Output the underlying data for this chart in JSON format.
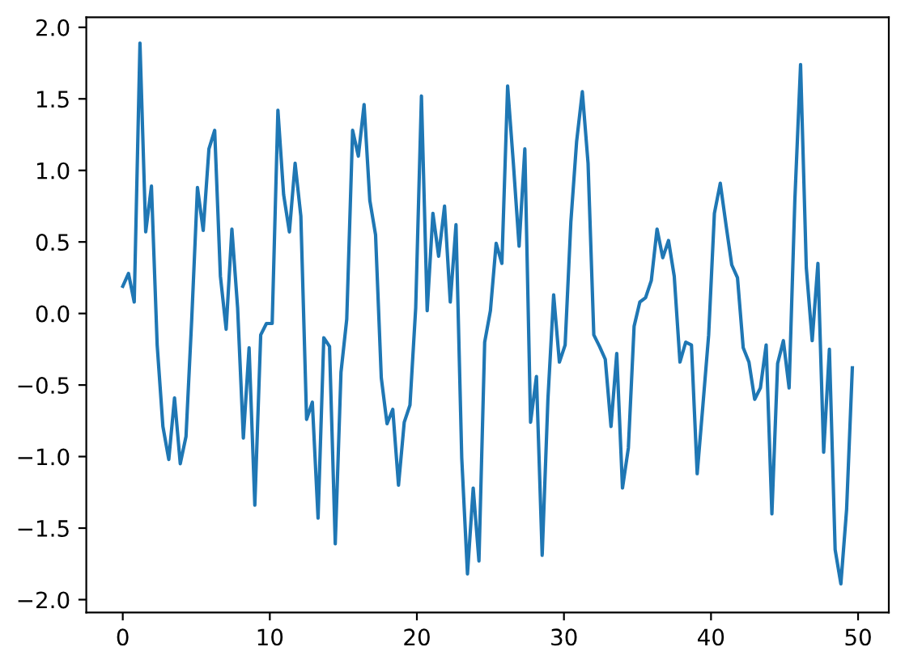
{
  "chart_data": {
    "type": "line",
    "x": [
      0,
      0.39,
      0.78,
      1.17,
      1.56,
      1.95,
      2.34,
      2.73,
      3.13,
      3.52,
      3.91,
      4.3,
      4.69,
      5.08,
      5.47,
      5.86,
      6.25,
      6.64,
      7.03,
      7.42,
      7.81,
      8.2,
      8.59,
      8.98,
      9.38,
      9.77,
      10.16,
      10.55,
      10.94,
      11.33,
      11.72,
      12.11,
      12.5,
      12.89,
      13.28,
      13.67,
      14.06,
      14.45,
      14.84,
      15.23,
      15.63,
      16.02,
      16.41,
      16.8,
      17.19,
      17.58,
      17.97,
      18.36,
      18.75,
      19.14,
      19.53,
      19.92,
      20.31,
      20.7,
      21.09,
      21.48,
      21.88,
      22.27,
      22.66,
      23.05,
      23.44,
      23.83,
      24.22,
      24.61,
      25,
      25.39,
      25.78,
      26.17,
      26.56,
      26.95,
      27.34,
      27.73,
      28.13,
      28.52,
      28.91,
      29.3,
      29.69,
      30.08,
      30.47,
      30.86,
      31.25,
      31.64,
      32.03,
      32.42,
      32.81,
      33.2,
      33.59,
      33.98,
      34.38,
      34.77,
      35.16,
      35.55,
      35.94,
      36.33,
      36.72,
      37.11,
      37.5,
      37.89,
      38.28,
      38.67,
      39.06,
      39.45,
      39.84,
      40.23,
      40.63,
      41.02,
      41.41,
      41.8,
      42.19,
      42.58,
      42.97,
      43.36,
      43.75,
      44.14,
      44.53,
      44.92,
      45.31,
      45.7,
      46.09,
      46.48,
      46.88,
      47.27,
      47.66,
      48.05,
      48.44,
      48.83,
      49.22,
      49.61
    ],
    "series": [
      {
        "color": "#1f77b4",
        "values": [
          0.19,
          0.28,
          0.08,
          1.89,
          0.57,
          0.89,
          -0.22,
          -0.79,
          -1.02,
          -0.59,
          -1.05,
          -0.86,
          -0.04,
          0.88,
          0.58,
          1.15,
          1.28,
          0.26,
          -0.11,
          0.59,
          0.04,
          -0.87,
          -0.24,
          -1.34,
          -0.15,
          -0.07,
          -0.07,
          1.42,
          0.83,
          0.57,
          1.05,
          0.68,
          -0.74,
          -0.62,
          -1.43,
          -0.17,
          -0.23,
          -1.61,
          -0.41,
          -0.04,
          1.28,
          1.1,
          1.46,
          0.79,
          0.55,
          -0.45,
          -0.77,
          -0.67,
          -1.2,
          -0.76,
          -0.64,
          0.04,
          1.52,
          0.02,
          0.7,
          0.4,
          0.75,
          0.08,
          0.62,
          -1.01,
          -1.82,
          -1.22,
          -1.73,
          -0.2,
          0.02,
          0.49,
          0.35,
          1.59,
          1.05,
          0.47,
          1.15,
          -0.76,
          -0.44,
          -1.69,
          -0.6,
          0.13,
          -0.34,
          -0.22,
          0.64,
          1.2,
          1.55,
          1.05,
          -0.15,
          -0.23,
          -0.32,
          -0.79,
          -0.28,
          -1.22,
          -0.94,
          -0.09,
          0.08,
          0.11,
          0.23,
          0.59,
          0.39,
          0.51,
          0.26,
          -0.34,
          -0.2,
          -0.22,
          -1.12,
          -0.64,
          -0.15,
          0.7,
          0.91,
          0.62,
          0.34,
          0.25,
          -0.24,
          -0.34,
          -0.6,
          -0.52,
          -0.22,
          -1.4,
          -0.35,
          -0.19,
          -0.52,
          0.79,
          1.74,
          0.32,
          -0.19,
          0.35,
          -0.97,
          -0.25,
          -1.65,
          -1.89,
          -1.37,
          -0.38
        ]
      }
    ],
    "xlim": [
      -2.48,
      52.09
    ],
    "ylim": [
      -2.09,
      2.07
    ],
    "xticks": [
      0,
      10,
      20,
      30,
      40,
      50
    ],
    "yticks": [
      {
        "value": -2,
        "label": "−2.0"
      },
      {
        "value": -1.5,
        "label": "−1.5"
      },
      {
        "value": -1,
        "label": "−1.0"
      },
      {
        "value": -0.5,
        "label": "−0.5"
      },
      {
        "value": 0,
        "label": "0.0"
      },
      {
        "value": 0.5,
        "label": "0.5"
      },
      {
        "value": 1,
        "label": "1.0"
      },
      {
        "value": 1.5,
        "label": "1.5"
      },
      {
        "value": 2,
        "label": "2.0"
      }
    ]
  }
}
